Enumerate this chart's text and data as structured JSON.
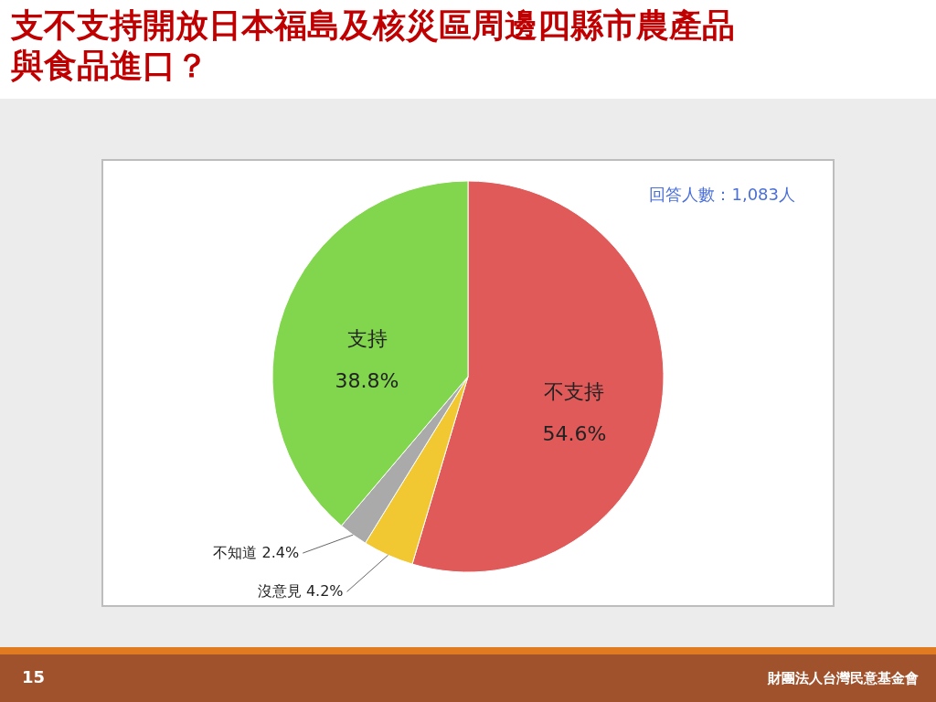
{
  "chart_data": {
    "type": "pie",
    "title": "支不支持開放日本福島及核災區周邊四縣市農產品與食品進口？",
    "categories": [
      "不支持",
      "沒意見",
      "不知道",
      "支持"
    ],
    "values": [
      54.6,
      4.2,
      2.4,
      38.8
    ],
    "colors": [
      "#e05a5a",
      "#f2c832",
      "#aaaaaa",
      "#82d64e"
    ],
    "value_labels": [
      "54.6%",
      "4.2%",
      "2.4%",
      "38.8%"
    ],
    "annotations": [
      "回答人數：1,083人",
      "15",
      "財團法人台灣民意基金會"
    ]
  }
}
